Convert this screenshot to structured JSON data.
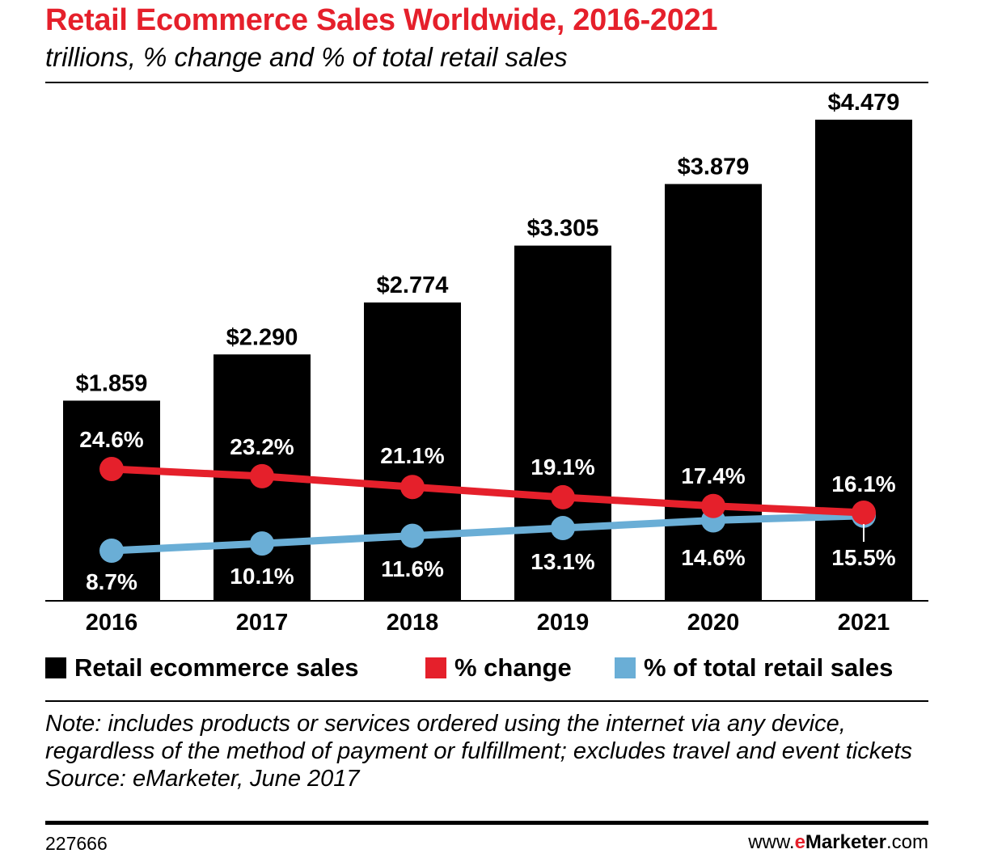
{
  "title": "Retail Ecommerce Sales Worldwide, 2016-2021",
  "subtitle": "trillions, % change and % of total retail sales",
  "legend": {
    "sales": "Retail ecommerce sales",
    "change": "% change",
    "share": "% of total retail sales"
  },
  "note": "Note: includes products or services ordered using the internet via any device, regardless of the method of payment or fulfillment; excludes travel and event tickets",
  "source": "Source: eMarketer, June 2017",
  "chart_id": "227666",
  "brand": {
    "prefix": "www.",
    "e": "e",
    "name": "Marketer",
    "suffix": ".com"
  },
  "colors": {
    "title": "#e5202b",
    "bars": "#000000",
    "change": "#e5202b",
    "share": "#6aaed6"
  },
  "chart_data": {
    "type": "bar",
    "title": "Retail Ecommerce Sales Worldwide, 2016-2021",
    "subtitle": "trillions, % change and % of total retail sales",
    "categories": [
      "2016",
      "2017",
      "2018",
      "2019",
      "2020",
      "2021"
    ],
    "ylim": [
      0,
      4.7
    ],
    "series": [
      {
        "name": "Retail ecommerce sales",
        "type": "bar",
        "values": [
          1.859,
          2.29,
          2.774,
          3.305,
          3.879,
          4.479
        ],
        "labels": [
          "$1.859",
          "$2.290",
          "$2.774",
          "$3.305",
          "$3.879",
          "$4.479"
        ]
      },
      {
        "name": "% change",
        "type": "line",
        "values": [
          24.6,
          23.2,
          21.1,
          19.1,
          17.4,
          16.1
        ],
        "labels": [
          "24.6%",
          "23.2%",
          "21.1%",
          "19.1%",
          "17.4%",
          "16.1%"
        ]
      },
      {
        "name": "% of total retail sales",
        "type": "line",
        "values": [
          8.7,
          10.1,
          11.6,
          13.1,
          14.6,
          15.5
        ],
        "labels": [
          "8.7%",
          "10.1%",
          "11.6%",
          "13.1%",
          "14.6%",
          "15.5%"
        ]
      }
    ],
    "legend_position": "bottom"
  }
}
